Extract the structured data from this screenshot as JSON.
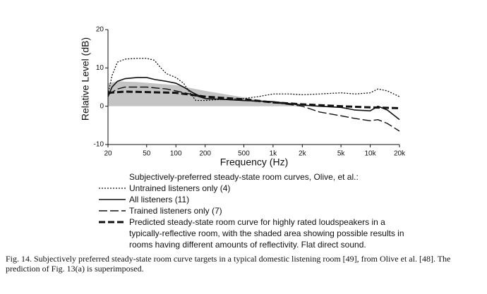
{
  "chart_data": {
    "type": "line",
    "ylabel": "Relative Level (dB)",
    "xlabel": "Frequency (Hz)",
    "xscale": "log",
    "xlim": [
      20,
      20000
    ],
    "ylim": [
      -10,
      20
    ],
    "xticks": [
      20,
      50,
      100,
      200,
      500,
      {
        "value": 1000,
        "label": "1k"
      },
      {
        "value": 2000,
        "label": "2k"
      },
      {
        "value": 5000,
        "label": "5k"
      },
      {
        "value": 10000,
        "label": "10k"
      },
      {
        "value": 20000,
        "label": "20k"
      }
    ],
    "yticks": [
      -10,
      0,
      10,
      20
    ],
    "band": {
      "color": "#c4c4c4",
      "x": [
        20,
        25,
        40,
        100,
        200,
        500,
        1000,
        2000
      ],
      "upper": [
        6,
        6.5,
        6.3,
        5.5,
        4,
        2.3,
        1,
        0
      ],
      "lower": [
        0,
        0,
        0,
        0,
        0,
        0,
        0,
        0
      ]
    },
    "legend_title": "Subjectively-preferred steady-state room curves, Olive, et al.:",
    "series": [
      {
        "name": "Untrained listeners only (4)",
        "color": "#111111",
        "linestyle": "dotted",
        "x": [
          20,
          22,
          25,
          30,
          40,
          50,
          60,
          70,
          80,
          100,
          120,
          140,
          160,
          200,
          300,
          500,
          700,
          1000,
          1500,
          2000,
          3000,
          5000,
          7000,
          10000,
          12000,
          15000,
          20000
        ],
        "values": [
          3,
          8,
          11.5,
          12.3,
          12.5,
          12.5,
          12,
          10,
          8.5,
          7.5,
          6,
          3.5,
          1.5,
          1.5,
          1.8,
          2,
          2.5,
          3.2,
          3.2,
          3,
          3.2,
          3.5,
          3.2,
          3.5,
          4.5,
          4,
          2.5
        ]
      },
      {
        "name": "All listeners (11)",
        "color": "#111111",
        "linestyle": "solid",
        "x": [
          20,
          22,
          25,
          30,
          40,
          50,
          60,
          80,
          100,
          120,
          150,
          200,
          300,
          500,
          1000,
          2000,
          3000,
          5000,
          7000,
          10000,
          12000,
          15000,
          20000
        ],
        "values": [
          2.5,
          5,
          6.5,
          7.2,
          7.5,
          7.5,
          7,
          6.5,
          6,
          5,
          3.5,
          2,
          1.8,
          1.5,
          1.2,
          0.3,
          0,
          -0.3,
          -1,
          -1.2,
          0,
          -1,
          -3.5
        ]
      },
      {
        "name": "Trained listeners only (7)",
        "color": "#111111",
        "linestyle": "long-dashed",
        "x": [
          20,
          25,
          30,
          50,
          80,
          100,
          150,
          200,
          500,
          1000,
          2000,
          3000,
          5000,
          7000,
          10000,
          12000,
          15000,
          20000
        ],
        "values": [
          3,
          4.5,
          5,
          5,
          4.5,
          4,
          3,
          2,
          1.5,
          1,
          0,
          -1.5,
          -2.5,
          -3.2,
          -3.8,
          -3.5,
          -4.5,
          -6.5
        ]
      },
      {
        "name": "Predicted steady-state room curve for highly rated loudspeakers in a typically-reflective room, with the shaded area showing possible results in rooms having different amounts of reflectivity.  Flat direct sound.",
        "color": "#111111",
        "linestyle": "thick-dashed",
        "x": [
          20,
          30,
          50,
          100,
          200,
          500,
          1000,
          2000,
          5000,
          10000,
          20000
        ],
        "values": [
          3.5,
          3.8,
          3.7,
          3.5,
          2.5,
          1.8,
          1,
          0.5,
          0,
          -0.3,
          -0.5
        ]
      }
    ]
  },
  "caption": "Fig. 14.  Subjectively preferred steady-state room curve targets in a typical domestic listening room [49], from Olive et al. [48]. The prediction of Fig. 13(a) is superimposed."
}
